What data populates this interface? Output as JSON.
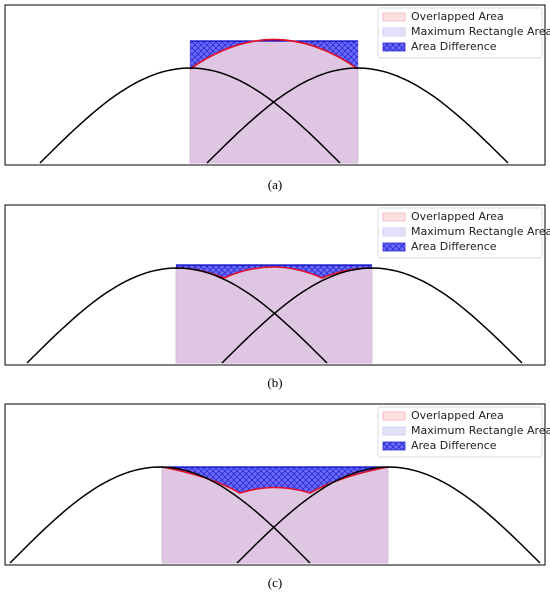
{
  "panels": [
    {
      "caption": "(a)",
      "legend": [
        "Overlapped Area",
        "Maximum Rectangle Area",
        "Area Difference"
      ]
    },
    {
      "caption": "(b)",
      "legend": [
        "Overlapped Area",
        "Maximum Rectangle Area",
        "Area Difference"
      ]
    },
    {
      "caption": "(c)",
      "legend": [
        "Overlapped Area",
        "Maximum Rectangle Area",
        "Area Difference"
      ]
    }
  ]
}
